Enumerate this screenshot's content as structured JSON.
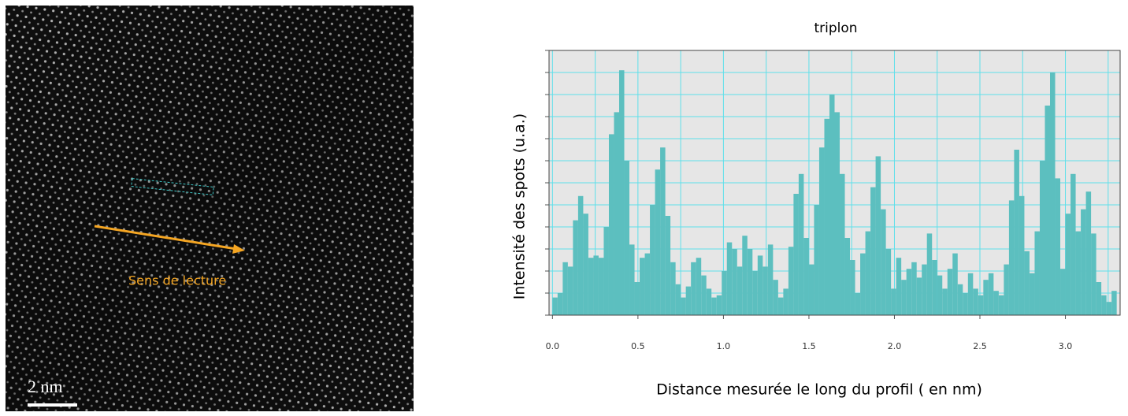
{
  "image": {
    "annotation": "Sens de lecture",
    "scale_bar": "2 nm"
  },
  "chart_data": {
    "type": "bar",
    "annotation": "triplon",
    "xlabel": "Distance mesurée le long du profil ( en nm)",
    "ylabel": "Intensité des spots (u.a.)",
    "color": "#5cbfbf",
    "background": "#e6e6e6",
    "grid_color": "#5ee0ea",
    "grid": true,
    "bar_width": 0.03,
    "xlim": [
      -0.02,
      3.32
    ],
    "xticks": [
      {
        "value": 0,
        "label": "0.0"
      },
      0.5,
      {
        "value": 1,
        "label": "1.0"
      },
      1.5,
      {
        "value": 2,
        "label": "2.0"
      },
      2.5,
      {
        "value": 3,
        "label": "3.0"
      }
    ],
    "x_minor_grid": [
      0.25,
      0.75,
      1.25,
      1.75,
      2.25,
      2.75,
      3.25
    ],
    "ylim": [
      0,
      12
    ],
    "yticks": [
      0,
      1,
      2,
      3,
      4,
      5,
      6,
      7,
      8,
      9,
      10,
      11,
      12
    ],
    "x": [
      0,
      0.03,
      0.06,
      0.09,
      0.12,
      0.15,
      0.18,
      0.21,
      0.24,
      0.27,
      0.3,
      0.33,
      0.36,
      0.39,
      0.42,
      0.45,
      0.48,
      0.51,
      0.54,
      0.57,
      0.6,
      0.63,
      0.66,
      0.69,
      0.72,
      0.75,
      0.78,
      0.81,
      0.84,
      0.87,
      0.9,
      0.93,
      0.96,
      0.99,
      1.02,
      1.05,
      1.08,
      1.11,
      1.14,
      1.17,
      1.2,
      1.23,
      1.26,
      1.29,
      1.32,
      1.35,
      1.38,
      1.41,
      1.44,
      1.47,
      1.5,
      1.53,
      1.56,
      1.59,
      1.62,
      1.65,
      1.68,
      1.71,
      1.74,
      1.77,
      1.8,
      1.83,
      1.86,
      1.89,
      1.92,
      1.95,
      1.98,
      2.01,
      2.04,
      2.07,
      2.1,
      2.13,
      2.16,
      2.19,
      2.22,
      2.25,
      2.28,
      2.31,
      2.34,
      2.37,
      2.4,
      2.43,
      2.46,
      2.49,
      2.52,
      2.55,
      2.58,
      2.61,
      2.64,
      2.67,
      2.7,
      2.73,
      2.76,
      2.79,
      2.82,
      2.85,
      2.88,
      2.91,
      2.94,
      2.97,
      3.0,
      3.03,
      3.06,
      3.09,
      3.12,
      3.15,
      3.18,
      3.21,
      3.24,
      3.27
    ],
    "values": [
      0.8,
      1.0,
      2.4,
      2.2,
      4.3,
      5.4,
      4.6,
      2.6,
      2.7,
      2.6,
      4.0,
      8.2,
      9.2,
      11.1,
      7.0,
      3.2,
      1.5,
      2.6,
      2.8,
      5.0,
      6.6,
      7.6,
      4.5,
      2.4,
      1.4,
      0.8,
      1.3,
      2.4,
      2.6,
      1.8,
      1.2,
      0.8,
      0.9,
      2.0,
      3.3,
      3.0,
      2.2,
      3.6,
      3.0,
      2.0,
      2.7,
      2.2,
      3.2,
      1.6,
      0.8,
      1.2,
      3.1,
      5.5,
      6.4,
      3.5,
      2.3,
      5.0,
      7.6,
      8.9,
      10.0,
      9.2,
      6.4,
      3.5,
      2.5,
      1.0,
      2.8,
      3.8,
      5.8,
      7.2,
      4.8,
      3.0,
      1.2,
      2.6,
      1.6,
      2.1,
      2.4,
      1.7,
      2.3,
      3.7,
      2.5,
      1.8,
      1.2,
      2.1,
      2.8,
      1.4,
      1.0,
      1.9,
      1.2,
      0.9,
      1.6,
      1.9,
      1.1,
      0.9,
      2.3,
      5.2,
      7.5,
      5.4,
      2.9,
      1.9,
      3.8,
      7.0,
      9.5,
      11.0,
      6.2,
      2.1,
      4.6,
      6.4,
      3.8,
      4.8,
      5.6,
      3.7,
      1.5,
      0.9,
      0.6,
      1.1
    ]
  }
}
